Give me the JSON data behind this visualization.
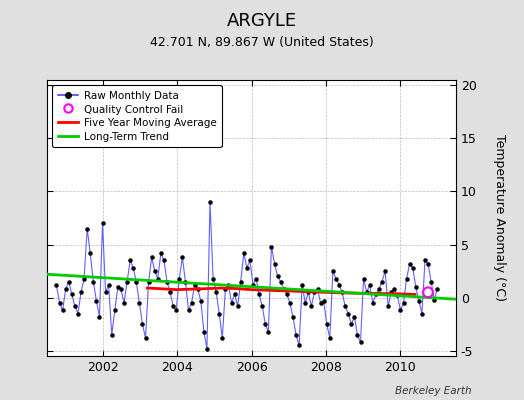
{
  "title": "ARGYLE",
  "subtitle": "42.701 N, 89.867 W (United States)",
  "ylabel": "Temperature Anomaly (°C)",
  "watermark": "Berkeley Earth",
  "xlim": [
    2000.5,
    2011.5
  ],
  "ylim": [
    -5.5,
    20.5
  ],
  "yticks": [
    -5,
    0,
    5,
    10,
    15,
    20
  ],
  "xticks": [
    2002,
    2004,
    2006,
    2008,
    2010
  ],
  "background_color": "#e0e0e0",
  "plot_bg_color": "#ffffff",
  "raw_color": "#4444ff",
  "raw_marker_color": "#000000",
  "ma_color": "#ff0000",
  "trend_color": "#00cc00",
  "qc_color": "#ff00ff",
  "raw_x_start": 2000.75,
  "raw_x_end": 2011.0,
  "raw_data": [
    1.2,
    -0.5,
    -1.2,
    0.8,
    1.5,
    0.3,
    -0.8,
    -1.5,
    0.5,
    1.8,
    6.5,
    4.2,
    1.5,
    -0.3,
    -1.8,
    7.0,
    0.5,
    1.2,
    -3.5,
    -1.2,
    1.0,
    0.8,
    -0.5,
    1.5,
    3.5,
    2.8,
    1.5,
    -0.5,
    -2.5,
    -3.8,
    1.5,
    3.8,
    2.5,
    1.8,
    4.2,
    3.5,
    1.5,
    0.5,
    -0.8,
    -1.2,
    1.8,
    3.8,
    1.5,
    -1.2,
    -0.5,
    1.2,
    0.8,
    -0.3,
    -3.2,
    -4.8,
    9.0,
    1.8,
    0.5,
    -1.5,
    -3.8,
    0.8,
    1.2,
    -0.5,
    0.3,
    -0.8,
    1.5,
    4.2,
    2.8,
    3.5,
    1.2,
    1.8,
    0.3,
    -0.8,
    -2.5,
    -3.2,
    4.8,
    3.2,
    2.0,
    1.5,
    0.8,
    0.3,
    -0.5,
    -1.8,
    -3.5,
    -4.5,
    1.2,
    -0.5,
    0.5,
    -0.8,
    0.5,
    0.8,
    -0.5,
    -0.3,
    -2.5,
    -3.8,
    2.5,
    1.8,
    1.2,
    0.5,
    -0.8,
    -1.5,
    -2.5,
    -1.8,
    -3.5,
    -4.2,
    1.8,
    0.5,
    1.2,
    -0.5,
    0.3,
    0.8,
    1.5,
    2.5,
    -0.8,
    0.5,
    0.8,
    0.2,
    -1.2,
    -0.5,
    1.8,
    3.2,
    2.8,
    1.0,
    -0.3,
    -1.5,
    3.5,
    3.2,
    1.5,
    -0.2,
    0.8
  ],
  "trend_x": [
    2000.5,
    2011.5
  ],
  "trend_y": [
    2.2,
    -0.15
  ],
  "ma_x": [
    2003.2,
    2003.5,
    2004.0,
    2004.4,
    2004.8,
    2005.2,
    2005.6,
    2006.0,
    2006.4,
    2006.8,
    2007.2,
    2007.6,
    2008.0,
    2008.4,
    2008.8,
    2009.2,
    2009.6,
    2010.0,
    2010.4
  ],
  "ma_y": [
    0.9,
    0.85,
    0.75,
    0.8,
    0.85,
    0.9,
    0.85,
    0.75,
    0.7,
    0.65,
    0.6,
    0.55,
    0.5,
    0.45,
    0.42,
    0.4,
    0.38,
    0.35,
    0.3
  ],
  "qc_fail_x": [
    2010.75
  ],
  "qc_fail_y": [
    0.5
  ]
}
